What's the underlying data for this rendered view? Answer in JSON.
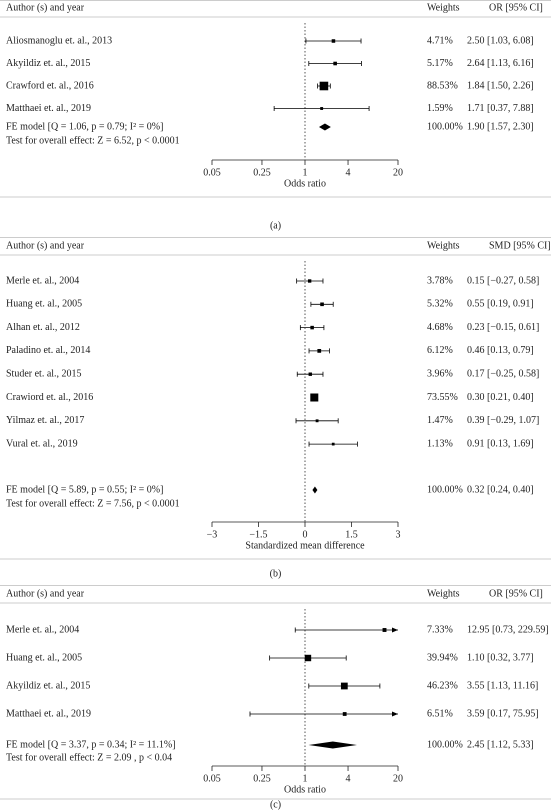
{
  "chart_data": [
    {
      "type": "forest",
      "caption": "(a)",
      "columns": [
        "Author (s) and year",
        "Weights",
        "OR [95% CI]"
      ],
      "studies": [
        "Aliosmanoglu et. al., 2013",
        "Akyildiz et. al., 2015",
        "Crawford et. al., 2016",
        "Matthaei et. al., 2019"
      ],
      "weights": [
        4.71,
        5.17,
        88.53,
        1.59
      ],
      "weight_labels": [
        "4.71%",
        "5.17%",
        "88.53%",
        "1.59%"
      ],
      "estimates": [
        2.5,
        2.64,
        1.84,
        1.71
      ],
      "lower": [
        1.03,
        1.13,
        1.5,
        0.37
      ],
      "upper": [
        6.08,
        6.16,
        2.26,
        7.88
      ],
      "ci_labels": [
        "2.50 [1.03, 6.08]",
        "2.64 [1.13, 6.16]",
        "1.84 [1.50, 2.26]",
        "1.71 [0.37, 7.88]"
      ],
      "summary": {
        "label": "FE model [Q = 1.06, p = 0.79; I² = 0%]",
        "test": "Test for overall effect: Z = 6.52, p < 0.0001",
        "weight": 100,
        "weight_label": "100.00%",
        "estimate": 1.9,
        "lower": 1.57,
        "upper": 2.3,
        "ci_label": "1.90 [1.57, 2.30]"
      },
      "x_label": "Odds ratio",
      "log_scale": true,
      "xlim": [
        0.05,
        20
      ],
      "xticks": [
        0.05,
        0.25,
        1,
        4,
        20
      ],
      "reference": 1,
      "color": "#000000"
    },
    {
      "type": "forest",
      "caption": "(b)",
      "columns": [
        "Author (s) and year",
        "Weights",
        "SMD [95% CI]"
      ],
      "studies": [
        "Merle et. al., 2004",
        "Huang et. al., 2005",
        "Alhan et. al., 2012",
        "Paladino et. al., 2014",
        "Studer et. al., 2015",
        "Crawiord et. al., 2016",
        "Yilmaz et. al., 2017",
        "Vural et. al., 2019"
      ],
      "weights": [
        3.78,
        5.32,
        4.68,
        6.12,
        3.96,
        73.55,
        1.47,
        1.13
      ],
      "weight_labels": [
        "3.78%",
        "5.32%",
        "4.68%",
        "6.12%",
        "3.96%",
        "73.55%",
        "1.47%",
        "1.13%"
      ],
      "estimates": [
        0.15,
        0.55,
        0.23,
        0.46,
        0.17,
        0.3,
        0.39,
        0.91
      ],
      "lower": [
        -0.27,
        0.19,
        -0.15,
        0.13,
        -0.25,
        0.21,
        -0.29,
        0.13
      ],
      "upper": [
        0.58,
        0.91,
        0.61,
        0.79,
        0.58,
        0.4,
        1.07,
        1.69
      ],
      "ci_labels": [
        "0.15 [−0.27, 0.58]",
        "0.55 [0.19, 0.91]",
        "0.23 [−0.15, 0.61]",
        "0.46 [0.13, 0.79]",
        "0.17 [−0.25, 0.58]",
        "0.30 [0.21, 0.40]",
        "0.39 [−0.29, 1.07]",
        "0.91 [0.13, 1.69]"
      ],
      "summary": {
        "label": "FE model [Q = 5.89, p = 0.55; I² = 0%]",
        "test": "Test for overall effect: Z = 7.56, p < 0.0001",
        "weight": 100,
        "weight_label": "100.00%",
        "estimate": 0.32,
        "lower": 0.24,
        "upper": 0.4,
        "ci_label": "0.32 [0.24, 0.40]"
      },
      "x_label": "Standardized mean difference",
      "log_scale": false,
      "xlim": [
        -3,
        3
      ],
      "xticks": [
        {
          "value": -3,
          "label": "−3"
        },
        {
          "value": -1.5,
          "label": "−1.5"
        },
        0,
        1.5,
        3
      ],
      "reference": 0,
      "color": "#000000"
    },
    {
      "type": "forest",
      "caption": "(c)",
      "columns": [
        "Author (s) and year",
        "Weights",
        "OR [95% CI]"
      ],
      "studies": [
        "Merle et. al., 2004",
        "Huang et. al., 2005",
        "Akyildiz et. al., 2015",
        "Matthaei et. al., 2019"
      ],
      "weights": [
        7.33,
        39.94,
        46.23,
        6.51
      ],
      "weight_labels": [
        "7.33%",
        "39.94%",
        "46.23%",
        "6.51%"
      ],
      "estimates": [
        12.95,
        1.1,
        3.55,
        3.59
      ],
      "lower": [
        0.73,
        0.32,
        1.13,
        0.17
      ],
      "upper": [
        229.59,
        3.77,
        11.16,
        75.95
      ],
      "ci_labels": [
        "12.95 [0.73, 229.59]",
        "1.10 [0.32, 3.77]",
        "3.55 [1.13, 11.16]",
        "3.59 [0.17, 75.95]"
      ],
      "summary": {
        "label": "FE model [Q = 3.37, p = 0.34; I² = 11.1%]",
        "test": "Test for overall effect: Z = 2.09 , p < 0.04",
        "weight": 100,
        "weight_label": "100.00%",
        "estimate": 2.45,
        "lower": 1.12,
        "upper": 5.33,
        "ci_label": "2.45 [1.12, 5.33]"
      },
      "x_label": "Odds ratio",
      "log_scale": true,
      "xlim": [
        0.05,
        20
      ],
      "xticks": [
        0.05,
        0.25,
        1,
        4,
        20
      ],
      "reference": 1,
      "color": "#000000"
    }
  ]
}
